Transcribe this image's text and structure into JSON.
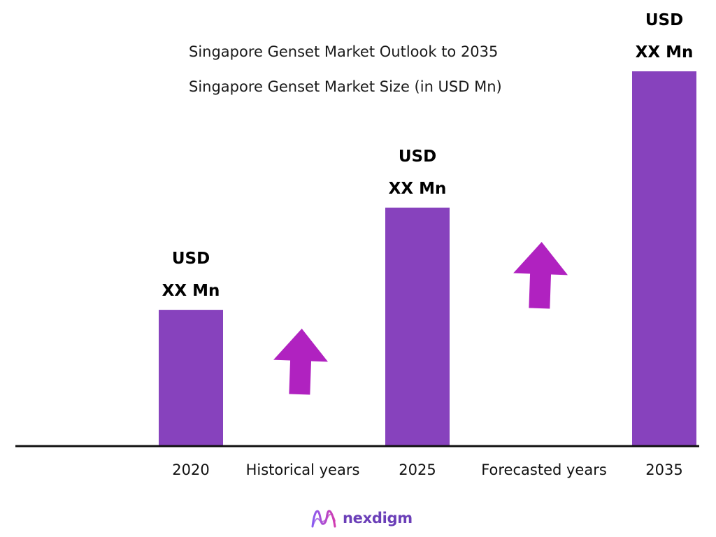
{
  "chart_data": {
    "type": "bar",
    "title": "Singapore Genset Market Outlook to 2035",
    "subtitle": "Singapore Genset Market Size (in USD Mn)",
    "categories": [
      "2020",
      "2025",
      "2035"
    ],
    "values": [
      20,
      35,
      55
    ],
    "value_labels": [
      {
        "line1": "USD",
        "line2": "XX Mn"
      },
      {
        "line1": "USD",
        "line2": "XX Mn"
      },
      {
        "line1": "USD",
        "line2": "XX Mn"
      }
    ],
    "period_labels": [
      "Historical years",
      "Forecasted years"
    ],
    "ylim": [
      0,
      55
    ],
    "grid": false,
    "legend": "none",
    "bar_color": "#8742bd",
    "arrow_color": "#b022c0",
    "axis_color": "#111111"
  },
  "brand": {
    "name": "nexdigm",
    "color": "#6b3fb8",
    "icon": "nexdigm-logo-icon"
  }
}
